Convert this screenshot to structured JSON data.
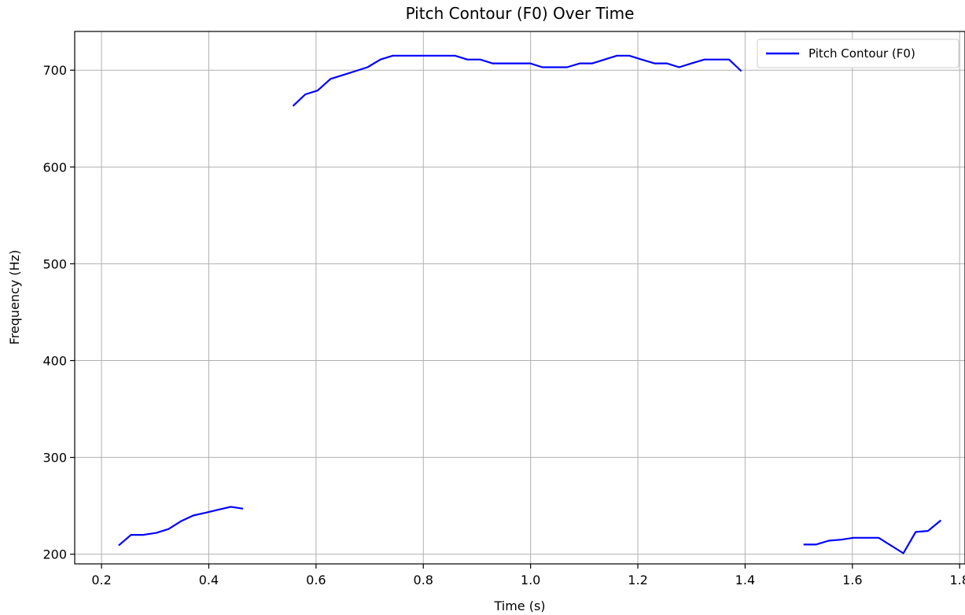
{
  "chart_data": {
    "type": "line",
    "title": "Pitch Contour (F0) Over Time",
    "xlabel": "Time (s)",
    "ylabel": "Frequency (Hz)",
    "xlim": [
      0.15,
      1.81
    ],
    "ylim": [
      190,
      740
    ],
    "xticks": [
      0.2,
      0.4,
      0.6,
      0.8,
      1.0,
      1.2,
      1.4,
      1.6,
      1.8
    ],
    "xtick_labels": [
      "0.2",
      "0.4",
      "0.6",
      "0.8",
      "1.0",
      "1.2",
      "1.4",
      "1.6",
      "1.8"
    ],
    "yticks": [
      200,
      300,
      400,
      500,
      600,
      700
    ],
    "ytick_labels": [
      "200",
      "300",
      "400",
      "500",
      "600",
      "700"
    ],
    "grid": true,
    "legend_position": "top-right",
    "series": [
      {
        "name": "Pitch Contour (F0)",
        "color": "#0000ff",
        "segments": [
          [
            [
              0.232,
              209
            ],
            [
              0.255,
              220
            ],
            [
              0.278,
              220
            ],
            [
              0.302,
              222
            ],
            [
              0.325,
              226
            ],
            [
              0.348,
              234
            ],
            [
              0.371,
              240
            ],
            [
              0.395,
              243
            ],
            [
              0.418,
              246
            ],
            [
              0.441,
              249
            ],
            [
              0.464,
              247
            ]
          ],
          [
            [
              0.557,
              663
            ],
            [
              0.58,
              675
            ],
            [
              0.603,
              679
            ],
            [
              0.627,
              691
            ],
            [
              0.65,
              695
            ],
            [
              0.673,
              699
            ],
            [
              0.696,
              703
            ],
            [
              0.72,
              711
            ],
            [
              0.743,
              715
            ],
            [
              0.766,
              715
            ],
            [
              0.789,
              715
            ],
            [
              0.813,
              715
            ],
            [
              0.836,
              715
            ],
            [
              0.859,
              715
            ],
            [
              0.882,
              711
            ],
            [
              0.906,
              711
            ],
            [
              0.929,
              707
            ],
            [
              0.952,
              707
            ],
            [
              0.975,
              707
            ],
            [
              0.999,
              707
            ],
            [
              1.022,
              703
            ],
            [
              1.045,
              703
            ],
            [
              1.068,
              703
            ],
            [
              1.092,
              707
            ],
            [
              1.115,
              707
            ],
            [
              1.138,
              711
            ],
            [
              1.161,
              715
            ],
            [
              1.184,
              715
            ],
            [
              1.207,
              711
            ],
            [
              1.231,
              707
            ],
            [
              1.254,
              707
            ],
            [
              1.277,
              703
            ],
            [
              1.3,
              707
            ],
            [
              1.324,
              711
            ],
            [
              1.347,
              711
            ],
            [
              1.37,
              711
            ],
            [
              1.393,
              699
            ]
          ],
          [
            [
              1.509,
              210
            ],
            [
              1.532,
              210
            ],
            [
              1.556,
              214
            ],
            [
              1.579,
              215
            ],
            [
              1.602,
              217
            ],
            [
              1.625,
              217
            ],
            [
              1.649,
              217
            ],
            [
              1.695,
              201
            ],
            [
              1.718,
              223
            ],
            [
              1.741,
              224
            ],
            [
              1.765,
              235
            ]
          ]
        ]
      }
    ]
  }
}
